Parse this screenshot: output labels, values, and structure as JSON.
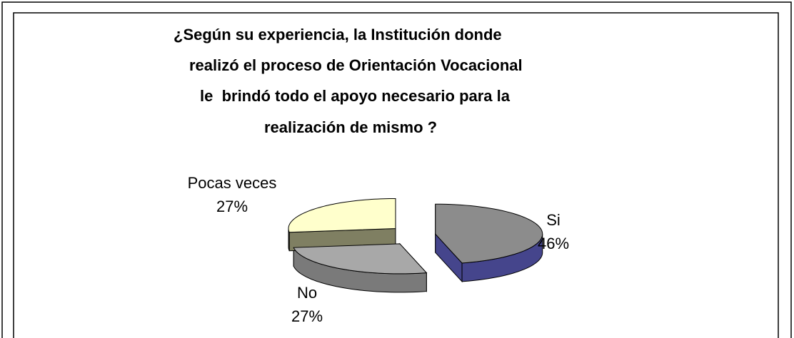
{
  "chart_data": {
    "type": "pie3d",
    "title_lines": [
      "¿Según su experiencia, la Institución donde",
      "realizó el proceso de Orientación Vocacional",
      "le  brindó todo el apoyo necesario para la",
      "realización de mismo ?"
    ],
    "categories": [
      "Si",
      "No",
      "Pocas veces"
    ],
    "values": [
      46,
      27,
      27
    ],
    "value_labels": [
      "46%",
      "27%",
      "27%"
    ],
    "colors": [
      "#8c8c8c",
      "#a8a8a8",
      "#ffffcc"
    ],
    "side_colors": [
      "#45458c",
      "#7a7a7a",
      "#7f7f62"
    ]
  }
}
